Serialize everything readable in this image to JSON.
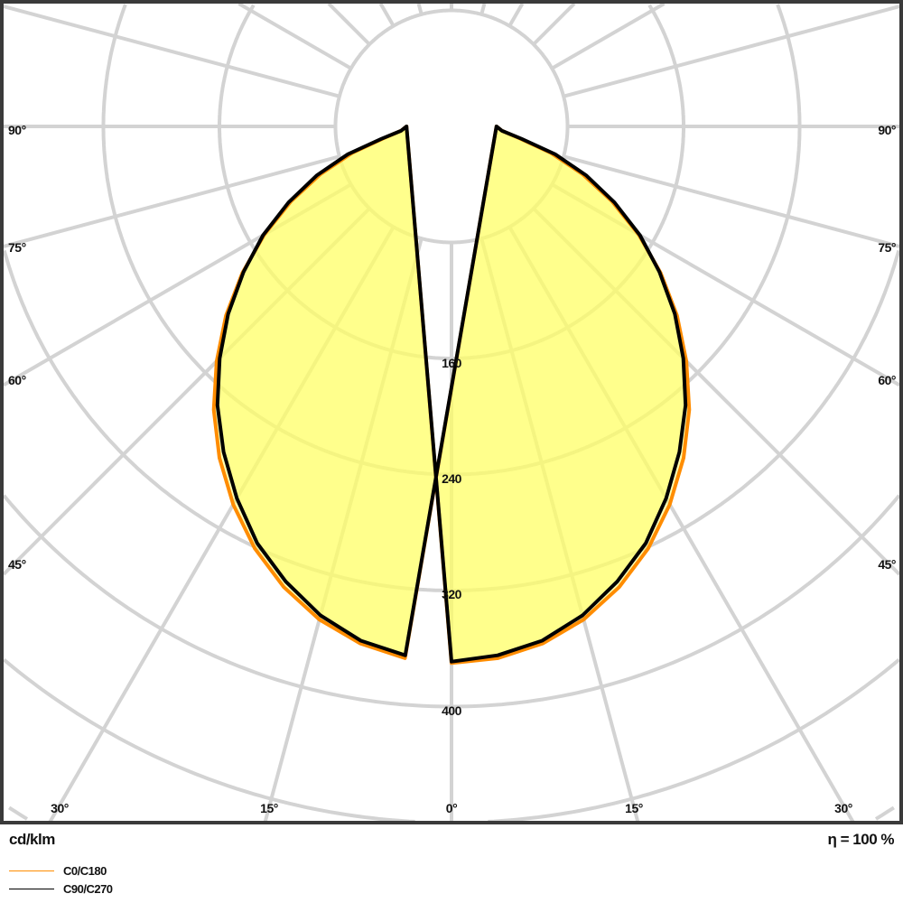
{
  "chart_data": {
    "type": "polar",
    "unit_label": "cd/klm",
    "efficiency_label": "η = 100 %",
    "radial_ticks": [
      80,
      160,
      240,
      320,
      400,
      480,
      560
    ],
    "radial_tick_labels": [
      "160",
      "240",
      "320",
      "400"
    ],
    "angle_tick_labels": {
      "left": [
        "90°",
        "75°",
        "60°",
        "45°"
      ],
      "bottom": [
        "30°",
        "15°",
        "0°",
        "15°",
        "30°"
      ],
      "right": [
        "90°",
        "75°",
        "60°",
        "45°"
      ]
    },
    "angle_step_deg": 15,
    "grid": true,
    "legend_placement": "bottom-left",
    "angles_deg": [
      0,
      5,
      10,
      15,
      20,
      25,
      30,
      35,
      40,
      45,
      50,
      55,
      60,
      65,
      70,
      75,
      80,
      85,
      90
    ],
    "series": [
      {
        "name": "C0/C180",
        "color": "#ff8c00",
        "values": [
          370,
          368,
          362,
          352,
          338,
          321,
          301,
          279,
          255,
          229,
          203,
          176,
          149,
          122,
          96,
          71,
          48,
          35,
          31
        ]
      },
      {
        "name": "C90/C270",
        "color": "#000000",
        "values": [
          369,
          366,
          360,
          349,
          334,
          317,
          296,
          274,
          251,
          226,
          201,
          175,
          150,
          124,
          99,
          74,
          49,
          35,
          31
        ]
      }
    ],
    "fill_color": "#ffff66",
    "grid_color": "#d3d3d3",
    "frame_color": "#3a3a3a"
  }
}
